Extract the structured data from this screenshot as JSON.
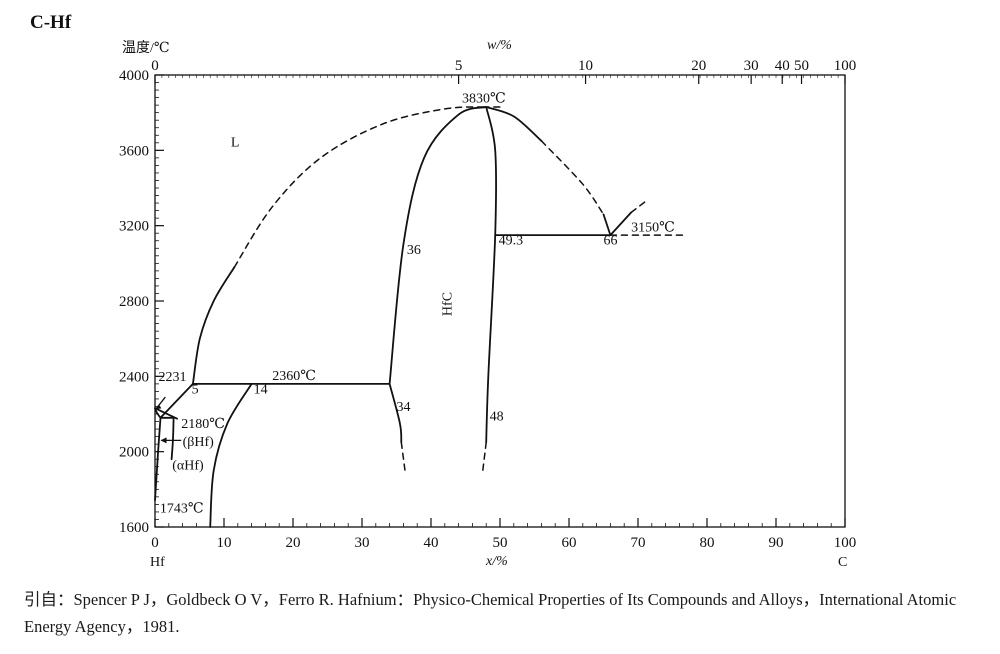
{
  "chart_data": {
    "type": "line",
    "title": "C-Hf",
    "ylabel": "温度/℃",
    "xlabel": "x/%",
    "top_axis_label": "w/%",
    "x_endpoints": {
      "left": "Hf",
      "right": "C"
    },
    "xlim": [
      0,
      100
    ],
    "ylim": [
      1600,
      4000
    ],
    "x_ticks": [
      0,
      10,
      20,
      30,
      40,
      50,
      60,
      70,
      80,
      90,
      100
    ],
    "y_ticks": [
      1600,
      2000,
      2400,
      2800,
      3200,
      3600,
      4000
    ],
    "top_ticks": [
      {
        "label": "0",
        "x": 0
      },
      {
        "label": "5",
        "x": 44.0
      },
      {
        "label": "10",
        "x": 62.4
      },
      {
        "label": "20",
        "x": 78.8
      },
      {
        "label": "30",
        "x": 86.4
      },
      {
        "label": "40",
        "x": 90.9
      },
      {
        "label": "50",
        "x": 93.7
      },
      {
        "label": "100",
        "x": 100
      }
    ],
    "series": [
      {
        "style": "solid",
        "points": [
          [
            0,
            2231
          ],
          [
            0.3,
            2205
          ],
          [
            0.8,
            2180
          ]
        ]
      },
      {
        "style": "solid",
        "points": [
          [
            0.8,
            2180
          ],
          [
            0.45,
            2000
          ],
          [
            0,
            1743
          ]
        ]
      },
      {
        "style": "solid",
        "points": [
          [
            0.8,
            2180
          ],
          [
            2.7,
            2180
          ]
        ]
      },
      {
        "style": "solid",
        "points": [
          [
            2.7,
            2180
          ],
          [
            2.6,
            2060
          ],
          [
            2.4,
            1960
          ]
        ]
      },
      {
        "style": "solid",
        "points": [
          [
            0.8,
            2180
          ],
          [
            5.5,
            2360
          ]
        ]
      },
      {
        "style": "solid",
        "points": [
          [
            0,
            2231
          ],
          [
            3.2,
            2175
          ]
        ]
      },
      {
        "style": "solid",
        "points": [
          [
            5.5,
            2360
          ],
          [
            6.5,
            2600
          ],
          [
            8.5,
            2800
          ],
          [
            11.5,
            2980
          ]
        ]
      },
      {
        "style": "dashed",
        "points": [
          [
            11.5,
            2980
          ],
          [
            17,
            3300
          ],
          [
            24,
            3560
          ],
          [
            33,
            3740
          ],
          [
            42,
            3820
          ],
          [
            48,
            3830
          ]
        ]
      },
      {
        "style": "solid",
        "points": [
          [
            5.5,
            2360
          ],
          [
            14,
            2360
          ]
        ]
      },
      {
        "style": "solid",
        "points": [
          [
            14,
            2360
          ],
          [
            10.5,
            2150
          ],
          [
            8.5,
            1900
          ],
          [
            8,
            1600
          ]
        ]
      },
      {
        "style": "solid",
        "points": [
          [
            14,
            2360
          ],
          [
            34,
            2360
          ]
        ]
      },
      {
        "style": "solid",
        "points": [
          [
            34,
            2360
          ],
          [
            36,
            3100
          ],
          [
            39,
            3560
          ],
          [
            44,
            3790
          ],
          [
            48,
            3830
          ]
        ]
      },
      {
        "style": "solid",
        "points": [
          [
            34,
            2360
          ],
          [
            35.5,
            2150
          ],
          [
            35.7,
            2050
          ]
        ]
      },
      {
        "style": "dashed",
        "points": [
          [
            35.7,
            2050
          ],
          [
            36.3,
            1880
          ]
        ]
      },
      {
        "style": "solid",
        "points": [
          [
            48,
            3830
          ],
          [
            49.3,
            3600
          ],
          [
            49.3,
            3150
          ],
          [
            48.3,
            2400
          ],
          [
            48,
            2050
          ]
        ]
      },
      {
        "style": "dashed",
        "points": [
          [
            48,
            2050
          ],
          [
            47.5,
            1900
          ]
        ]
      },
      {
        "style": "solid",
        "points": [
          [
            48,
            3830
          ],
          [
            52,
            3780
          ],
          [
            56,
            3650
          ]
        ]
      },
      {
        "style": "dashed",
        "points": [
          [
            56,
            3650
          ],
          [
            62,
            3420
          ],
          [
            65,
            3260
          ]
        ]
      },
      {
        "style": "solid",
        "points": [
          [
            65,
            3260
          ],
          [
            66,
            3150
          ]
        ]
      },
      {
        "style": "solid",
        "points": [
          [
            49.3,
            3150
          ],
          [
            66,
            3150
          ]
        ]
      },
      {
        "style": "dashed",
        "points": [
          [
            66,
            3150
          ],
          [
            77,
            3150
          ]
        ]
      },
      {
        "style": "solid",
        "points": [
          [
            66,
            3150
          ],
          [
            69,
            3270
          ]
        ]
      },
      {
        "style": "dashed",
        "points": [
          [
            69,
            3270
          ],
          [
            71.5,
            3340
          ]
        ]
      },
      {
        "style": "dashed",
        "points": [
          [
            47.5,
            3830
          ],
          [
            50.5,
            3830
          ]
        ]
      }
    ],
    "annotations": [
      {
        "text": "L",
        "x": 11,
        "y": 3620
      },
      {
        "text": "3830℃",
        "x": 44.5,
        "y": 3855
      },
      {
        "text": "3150℃",
        "x": 69,
        "y": 3170
      },
      {
        "text": "66",
        "x": 65,
        "y": 3100
      },
      {
        "text": "49.3",
        "x": 49.8,
        "y": 3100
      },
      {
        "text": "36",
        "x": 36.5,
        "y": 3050
      },
      {
        "text": "HfC",
        "x": 43,
        "y": 2720
      },
      {
        "text": "2360℃",
        "x": 17,
        "y": 2380
      },
      {
        "text": "2231",
        "x": 0.5,
        "y": 2375
      },
      {
        "text": "5",
        "x": 5.3,
        "y": 2310
      },
      {
        "text": "14",
        "x": 14.3,
        "y": 2310
      },
      {
        "text": "34",
        "x": 35,
        "y": 2215
      },
      {
        "text": "48",
        "x": 48.5,
        "y": 2165
      },
      {
        "text": "2180℃",
        "x": 3.8,
        "y": 2125
      },
      {
        "text": "(βHf)",
        "x": 4,
        "y": 2030
      },
      {
        "text": "(αHf)",
        "x": 2.5,
        "y": 1905
      },
      {
        "text": "1743℃",
        "x": 0.7,
        "y": 1678
      }
    ]
  },
  "caption": "引自：Spencer P J，Goldbeck O V，Ferro R. Hafnium：Physico-Chemical Properties of Its Compounds and Alloys，International Atomic Energy Agency，1981."
}
